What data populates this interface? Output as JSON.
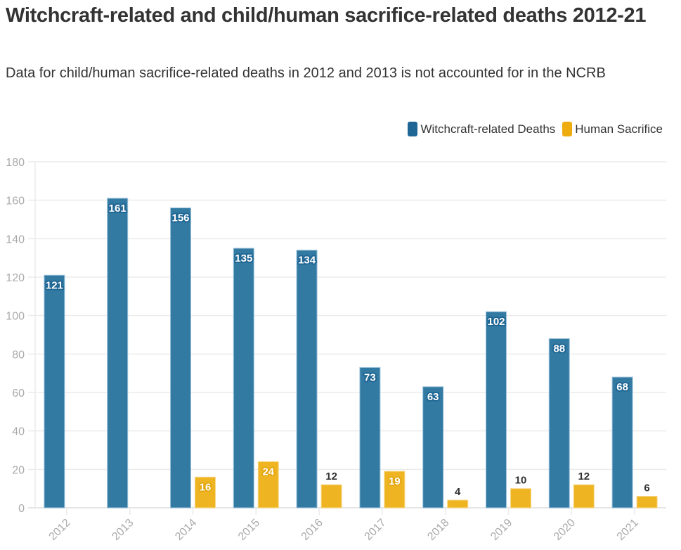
{
  "header": {
    "title": "Witchcraft-related and child/human sacrifice-related deaths 2012-21",
    "subtitle": "Data for child/human sacrifice-related deaths in 2012 and 2013 is not accounted for in the NCRB"
  },
  "legend": [
    {
      "label": "Witchcraft-related Deaths",
      "color": "#1f6694"
    },
    {
      "label": "Human Sacrifice",
      "color": "#eeac0e"
    }
  ],
  "chart_data": {
    "type": "bar",
    "title": "Witchcraft-related and child/human sacrifice-related deaths 2012-21",
    "subtitle": "Data for child/human sacrifice-related deaths in 2012 and 2013 is not accounted for in the NCRB",
    "xlabel": "",
    "ylabel": "",
    "categories": [
      "2012",
      "2013",
      "2014",
      "2015",
      "2016",
      "2017",
      "2018",
      "2019",
      "2020",
      "2021"
    ],
    "series": [
      {
        "name": "Witchcraft-related Deaths",
        "color": "#337aa3",
        "values": [
          121,
          161,
          156,
          135,
          134,
          73,
          63,
          102,
          88,
          68
        ]
      },
      {
        "name": "Human Sacrifice",
        "color": "#eeb422",
        "values": [
          null,
          null,
          16,
          24,
          12,
          19,
          4,
          10,
          12,
          6
        ]
      }
    ],
    "ylim": [
      0,
      180
    ],
    "yticks": [
      0,
      20,
      40,
      60,
      80,
      100,
      120,
      140,
      160,
      180
    ],
    "grid": true,
    "legend_position": "top-right",
    "x_tick_rotation": -45
  }
}
